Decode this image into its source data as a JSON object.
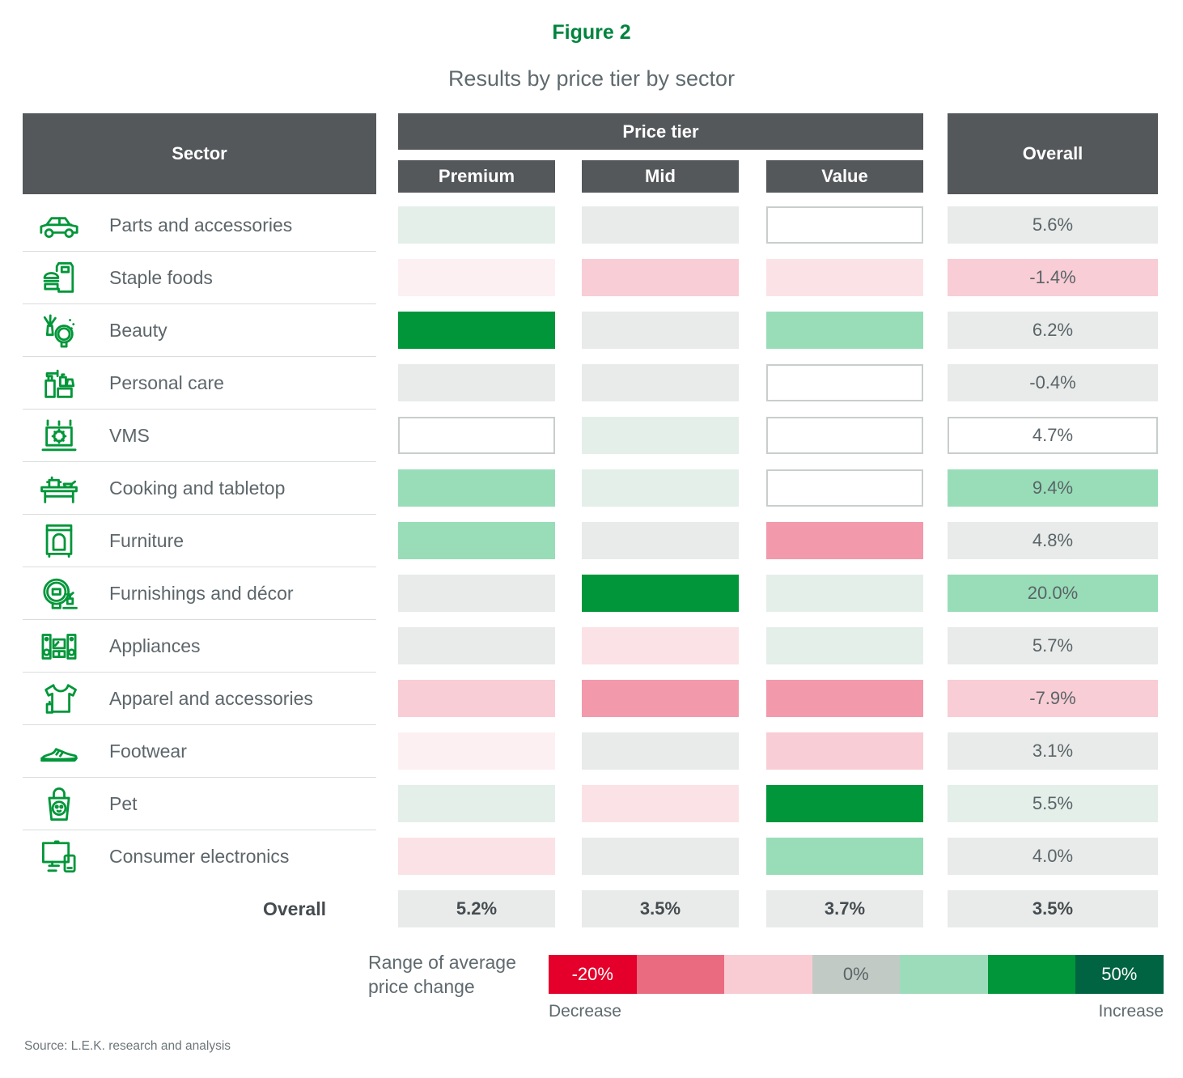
{
  "figure": {
    "label": "Figure 2",
    "title": "Results by price tier by sector"
  },
  "table": {
    "headers": {
      "sector": "Sector",
      "price_tier": "Price tier",
      "tiers": [
        "Premium",
        "Mid",
        "Value"
      ],
      "overall": "Overall"
    },
    "rows": [
      {
        "sector": "Parts and accessories",
        "icon": "car-icon",
        "tiers": [
          "paleGreen",
          "neutral",
          "white"
        ],
        "overall": "5.6%",
        "overall_tone": "neutral"
      },
      {
        "sector": "Staple foods",
        "icon": "staple-foods-icon",
        "tiers": [
          "palestPink",
          "lightPink",
          "palePink"
        ],
        "overall": "-1.4%",
        "overall_tone": "lightPink"
      },
      {
        "sector": "Beauty",
        "icon": "beauty-icon",
        "tiers": [
          "strongGreen",
          "neutral",
          "lightGreen"
        ],
        "overall": "6.2%",
        "overall_tone": "neutral"
      },
      {
        "sector": "Personal care",
        "icon": "personal-care-icon",
        "tiers": [
          "neutral",
          "neutral",
          "white"
        ],
        "overall": "-0.4%",
        "overall_tone": "neutral"
      },
      {
        "sector": "VMS",
        "icon": "vms-icon",
        "tiers": [
          "white",
          "paleGreen",
          "white"
        ],
        "overall": "4.7%",
        "overall_tone": "white"
      },
      {
        "sector": "Cooking and tabletop",
        "icon": "cooking-icon",
        "tiers": [
          "lightGreen",
          "paleGreen",
          "white"
        ],
        "overall": "9.4%",
        "overall_tone": "lightGreen"
      },
      {
        "sector": "Furniture",
        "icon": "furniture-icon",
        "tiers": [
          "lightGreen",
          "neutral",
          "rose"
        ],
        "overall": "4.8%",
        "overall_tone": "neutral"
      },
      {
        "sector": "Furnishings and décor",
        "icon": "decor-icon",
        "tiers": [
          "neutral",
          "strongGreen",
          "paleGreen"
        ],
        "overall": "20.0%",
        "overall_tone": "lightGreen"
      },
      {
        "sector": "Appliances",
        "icon": "appliances-icon",
        "tiers": [
          "neutral",
          "palePink",
          "paleGreen"
        ],
        "overall": "5.7%",
        "overall_tone": "neutral"
      },
      {
        "sector": "Apparel and accessories",
        "icon": "apparel-icon",
        "tiers": [
          "lightPink",
          "rose",
          "rose"
        ],
        "overall": "-7.9%",
        "overall_tone": "lightPink"
      },
      {
        "sector": "Footwear",
        "icon": "footwear-icon",
        "tiers": [
          "palestPink",
          "neutral",
          "lightPink"
        ],
        "overall": "3.1%",
        "overall_tone": "neutral"
      },
      {
        "sector": "Pet",
        "icon": "pet-icon",
        "tiers": [
          "paleGreen",
          "palePink",
          "strongGreen"
        ],
        "overall": "5.5%",
        "overall_tone": "paleGreen"
      },
      {
        "sector": "Consumer electronics",
        "icon": "electronics-icon",
        "tiers": [
          "palePink",
          "neutral",
          "lightGreen"
        ],
        "overall": "4.0%",
        "overall_tone": "neutral"
      }
    ],
    "overall_row": {
      "label": "Overall",
      "values": [
        "5.2%",
        "3.5%",
        "3.7%",
        "3.5%"
      ]
    }
  },
  "colors": {
    "strongGreen": "#009639",
    "lightGreen": "#98ddb8",
    "paleGreen": "#e4efe9",
    "neutral": "#e8ebe9",
    "white": "#ffffff",
    "palestPink": "#fdf0f2",
    "palePink": "#fbe2e6",
    "lightPink": "#f9cdd5",
    "rose": "#f29aab",
    "header_dark": "#54585b",
    "title_green": "#00843d"
  },
  "legend": {
    "label": "Range of average price change",
    "swatches": [
      {
        "text": "-20%",
        "color": "#e4002b",
        "text_color": "#ffffff"
      },
      {
        "text": "",
        "color": "#ea6a80",
        "text_color": ""
      },
      {
        "text": "",
        "color": "#f9ccd4",
        "text_color": ""
      },
      {
        "text": "0%",
        "color": "#c2cac6",
        "text_color": "#5b6366"
      },
      {
        "text": "",
        "color": "#9cdcba",
        "text_color": ""
      },
      {
        "text": "",
        "color": "#009639",
        "text_color": ""
      },
      {
        "text": "50%",
        "color": "#006341",
        "text_color": "#ffffff"
      }
    ],
    "decrease_label": "Decrease",
    "increase_label": "Increase"
  },
  "source": "Source: L.E.K. research and analysis",
  "chart_data": {
    "type": "heatmap",
    "title": "Results by price tier by sector",
    "figure_label": "Figure 2",
    "columns": [
      "Premium",
      "Mid",
      "Value",
      "Overall"
    ],
    "rows": [
      "Parts and accessories",
      "Staple foods",
      "Beauty",
      "Personal care",
      "VMS",
      "Cooking and tabletop",
      "Furniture",
      "Furnishings and décor",
      "Appliances",
      "Apparel and accessories",
      "Footwear",
      "Pet",
      "Consumer electronics"
    ],
    "cell_color_bins": [
      [
        "paleGreen",
        "neutral",
        "white",
        "neutral"
      ],
      [
        "palestPink",
        "lightPink",
        "palePink",
        "lightPink"
      ],
      [
        "strongGreen",
        "neutral",
        "lightGreen",
        "neutral"
      ],
      [
        "neutral",
        "neutral",
        "white",
        "neutral"
      ],
      [
        "white",
        "paleGreen",
        "white",
        "white"
      ],
      [
        "lightGreen",
        "paleGreen",
        "white",
        "lightGreen"
      ],
      [
        "lightGreen",
        "neutral",
        "rose",
        "neutral"
      ],
      [
        "neutral",
        "strongGreen",
        "paleGreen",
        "lightGreen"
      ],
      [
        "neutral",
        "palePink",
        "paleGreen",
        "neutral"
      ],
      [
        "lightPink",
        "rose",
        "rose",
        "lightPink"
      ],
      [
        "palestPink",
        "neutral",
        "lightPink",
        "neutral"
      ],
      [
        "paleGreen",
        "palePink",
        "strongGreen",
        "paleGreen"
      ],
      [
        "palePink",
        "neutral",
        "lightGreen",
        "neutral"
      ]
    ],
    "overall_column_values": [
      "5.6%",
      "-1.4%",
      "6.2%",
      "-0.4%",
      "4.7%",
      "9.4%",
      "4.8%",
      "20.0%",
      "5.7%",
      "-7.9%",
      "3.1%",
      "5.5%",
      "4.0%"
    ],
    "overall_row_values": {
      "Premium": "5.2%",
      "Mid": "3.5%",
      "Value": "3.7%",
      "Overall": "3.5%"
    },
    "color_scale": {
      "min": "-20%",
      "mid": "0%",
      "max": "50%",
      "min_label": "Decrease",
      "max_label": "Increase"
    }
  }
}
